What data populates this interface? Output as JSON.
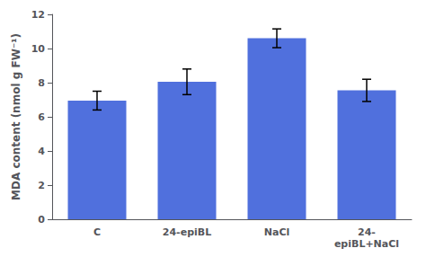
{
  "chart_data": {
    "type": "bar",
    "categories": [
      "C",
      "24-epiBL",
      "NaCl",
      "24-\nepiBL+NaCl"
    ],
    "values": [
      6.95,
      8.05,
      10.6,
      7.55
    ],
    "errors": [
      0.55,
      0.75,
      0.55,
      0.65
    ],
    "ylabel": "MDA content (nmol g FW⁻¹)",
    "ylim": [
      0,
      12
    ],
    "yticks": [
      0,
      2,
      4,
      6,
      8,
      10,
      12
    ],
    "grid": false
  }
}
